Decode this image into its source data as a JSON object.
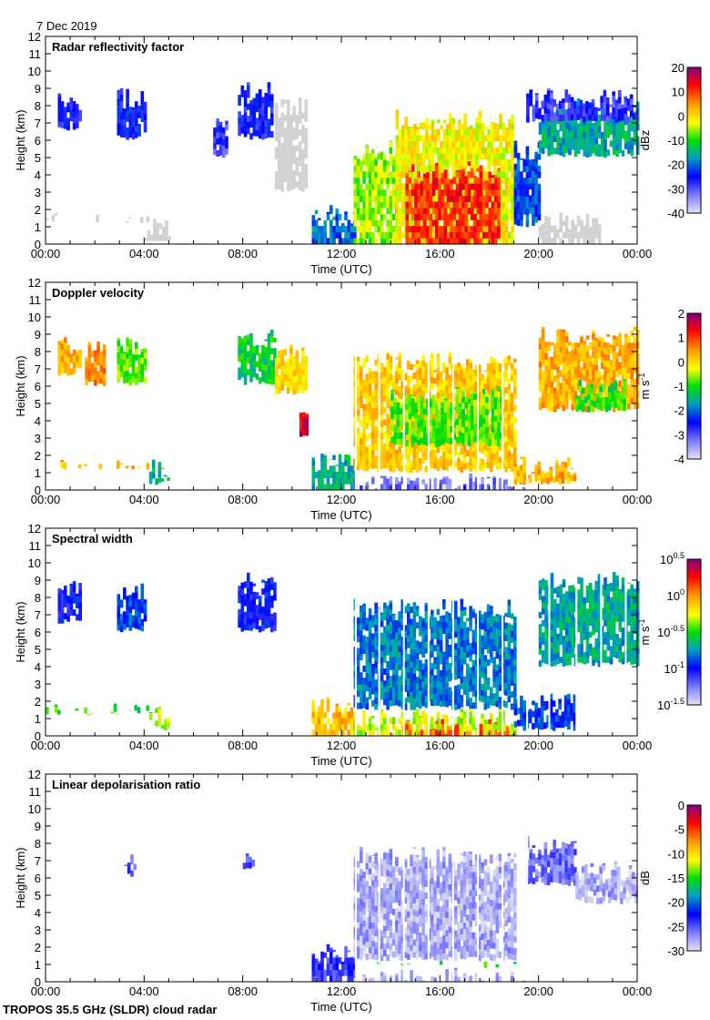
{
  "header": {
    "date": "7 Dec 2019"
  },
  "footer": {
    "credit": "TROPOS 35.5 GHz (SLDR) cloud radar"
  },
  "chart_data": [
    {
      "type": "heatmap",
      "title": "Radar reflectivity factor",
      "xlabel": "Time (UTC)",
      "ylabel": "Height (km)",
      "xlim": [
        0,
        24
      ],
      "ylim": [
        0,
        12
      ],
      "xticks": [
        "00:00",
        "04:00",
        "08:00",
        "12:00",
        "16:00",
        "20:00",
        "00:00"
      ],
      "yticks": [
        0,
        1,
        2,
        3,
        4,
        5,
        6,
        7,
        8,
        9,
        10,
        11,
        12
      ],
      "colorbar": {
        "unit": "dBz",
        "unit_sup": "",
        "range": [
          -40,
          20
        ],
        "ticks": [
          "20",
          "10",
          "0",
          "-10",
          "-20",
          "-30",
          "-40"
        ],
        "log": false
      },
      "gaps": [],
      "regions": [
        {
          "t": [
            0.5,
            1.4
          ],
          "h": [
            6.5,
            8.7
          ],
          "v": -26
        },
        {
          "t": [
            2.9,
            4.0
          ],
          "h": [
            6.0,
            9.0
          ],
          "v": -25
        },
        {
          "t": [
            0.0,
            4.8
          ],
          "h": [
            1.2,
            1.8
          ],
          "v": -45
        },
        {
          "t": [
            4.0,
            5.0
          ],
          "h": [
            0.2,
            1.5
          ],
          "v": -45
        },
        {
          "t": [
            7.8,
            9.2
          ],
          "h": [
            6.0,
            9.5
          ],
          "v": -26
        },
        {
          "t": [
            6.8,
            7.4
          ],
          "h": [
            5.0,
            7.5
          ],
          "v": -28
        },
        {
          "t": [
            9.3,
            10.5
          ],
          "h": [
            3.0,
            8.5
          ],
          "v": -45
        },
        {
          "t": [
            10.8,
            12.5
          ],
          "h": [
            0.0,
            2.3
          ],
          "v": -20
        },
        {
          "t": [
            12.5,
            14.2
          ],
          "h": [
            0.0,
            6.0
          ],
          "v": -6
        },
        {
          "t": [
            14.2,
            19.0
          ],
          "h": [
            0.0,
            7.8
          ],
          "v": -2
        },
        {
          "t": [
            14.6,
            18.4
          ],
          "h": [
            0.0,
            4.8
          ],
          "v": 11
        },
        {
          "t": [
            19.0,
            20.0
          ],
          "h": [
            1.0,
            6.0
          ],
          "v": -22
        },
        {
          "t": [
            20.0,
            22.5
          ],
          "h": [
            0.0,
            2.0
          ],
          "v": -45
        },
        {
          "t": [
            20.0,
            24.0
          ],
          "h": [
            5.0,
            8.5
          ],
          "v": -16
        },
        {
          "t": [
            19.5,
            24.0
          ],
          "h": [
            7.0,
            9.0
          ],
          "v": -28
        }
      ]
    },
    {
      "type": "heatmap",
      "title": "Doppler velocity",
      "xlabel": "Time (UTC)",
      "ylabel": "Height (km)",
      "xlim": [
        0,
        24
      ],
      "ylim": [
        0,
        12
      ],
      "xticks": [
        "00:00",
        "04:00",
        "08:00",
        "12:00",
        "16:00",
        "20:00",
        "00:00"
      ],
      "yticks": [
        0,
        1,
        2,
        3,
        4,
        5,
        6,
        7,
        8,
        9,
        10,
        11,
        12
      ],
      "colorbar": {
        "unit": "m s",
        "unit_sup": "-1",
        "range": [
          -4,
          2
        ],
        "ticks": [
          "2",
          "1",
          "0",
          "-1",
          "-2",
          "-3",
          "-4"
        ],
        "log": false
      },
      "gaps": [
        12.55,
        13.5,
        14.5,
        15.5,
        16.5,
        17.5,
        18.5,
        19.5
      ],
      "regions": [
        {
          "t": [
            0.5,
            1.4
          ],
          "h": [
            6.5,
            9.0
          ],
          "v": 0.3
        },
        {
          "t": [
            1.6,
            2.4
          ],
          "h": [
            6.0,
            8.8
          ],
          "v": 0.5
        },
        {
          "t": [
            2.9,
            4.0
          ],
          "h": [
            6.0,
            9.0
          ],
          "v": -0.8
        },
        {
          "t": [
            0.0,
            4.8
          ],
          "h": [
            1.2,
            1.8
          ],
          "v": 0.2
        },
        {
          "t": [
            4.2,
            5.0
          ],
          "h": [
            0.3,
            1.8
          ],
          "v": -1.5
        },
        {
          "t": [
            7.8,
            9.3
          ],
          "h": [
            6.0,
            9.5
          ],
          "v": -1.2
        },
        {
          "t": [
            9.3,
            10.5
          ],
          "h": [
            5.5,
            8.5
          ],
          "v": 0.0
        },
        {
          "t": [
            10.3,
            10.6
          ],
          "h": [
            3.0,
            5.0
          ],
          "v": 1.5
        },
        {
          "t": [
            10.8,
            12.5
          ],
          "h": [
            0.0,
            2.3
          ],
          "v": -1.5
        },
        {
          "t": [
            12.5,
            19.0
          ],
          "h": [
            1.0,
            8.0
          ],
          "v": 0.1
        },
        {
          "t": [
            14.0,
            18.5
          ],
          "h": [
            2.5,
            6.0
          ],
          "v": -0.8
        },
        {
          "t": [
            12.5,
            19.5
          ],
          "h": [
            0.0,
            1.0
          ],
          "v": -3.2
        },
        {
          "t": [
            19.0,
            21.5
          ],
          "h": [
            0.3,
            2.0
          ],
          "v": 0.3
        },
        {
          "t": [
            20.0,
            24.0
          ],
          "h": [
            4.5,
            9.5
          ],
          "v": 0.3
        },
        {
          "t": [
            21.5,
            23.5
          ],
          "h": [
            4.5,
            6.5
          ],
          "v": -1.0
        }
      ]
    },
    {
      "type": "heatmap",
      "title": "Spectral width",
      "xlabel": "Time (UTC)",
      "ylabel": "Height (km)",
      "xlim": [
        0,
        24
      ],
      "ylim": [
        0,
        12
      ],
      "xticks": [
        "00:00",
        "04:00",
        "08:00",
        "12:00",
        "16:00",
        "20:00",
        "00:00"
      ],
      "yticks": [
        0,
        1,
        2,
        3,
        4,
        5,
        6,
        7,
        8,
        9,
        10,
        11,
        12
      ],
      "colorbar": {
        "unit": "m s",
        "unit_sup": "-1",
        "range": [
          -1.5,
          0.5
        ],
        "log": true,
        "ticks": [
          {
            "base": "10",
            "exp": "0.5"
          },
          {
            "base": "10",
            "exp": "0"
          },
          {
            "base": "10",
            "exp": "-0.5"
          },
          {
            "base": "10",
            "exp": "-1"
          },
          {
            "base": "10",
            "exp": "-1.5"
          }
        ]
      },
      "gaps": [
        12.55,
        13.5,
        14.5,
        15.5,
        16.5,
        17.5,
        18.5,
        19.5,
        20.4,
        21.5,
        22.5,
        23.5
      ],
      "regions": [
        {
          "t": [
            0.5,
            1.4
          ],
          "h": [
            6.5,
            9.0
          ],
          "v": -1.0
        },
        {
          "t": [
            2.9,
            4.0
          ],
          "h": [
            6.0,
            9.0
          ],
          "v": -0.9
        },
        {
          "t": [
            0.0,
            4.8
          ],
          "h": [
            1.2,
            1.9
          ],
          "v": -0.5
        },
        {
          "t": [
            4.2,
            5.0
          ],
          "h": [
            0.3,
            1.8
          ],
          "v": -0.3
        },
        {
          "t": [
            7.8,
            9.3
          ],
          "h": [
            6.0,
            9.5
          ],
          "v": -1.0
        },
        {
          "t": [
            10.8,
            12.5
          ],
          "h": [
            0.0,
            2.3
          ],
          "v": -0.1
        },
        {
          "t": [
            12.5,
            19.0
          ],
          "h": [
            1.5,
            8.0
          ],
          "v": -0.8
        },
        {
          "t": [
            12.5,
            19.0
          ],
          "h": [
            0.0,
            1.6
          ],
          "v": -0.3
        },
        {
          "t": [
            14.0,
            19.0
          ],
          "h": [
            0.0,
            1.0
          ],
          "v": 0.1
        },
        {
          "t": [
            19.0,
            21.5
          ],
          "h": [
            0.3,
            2.5
          ],
          "v": -0.9
        },
        {
          "t": [
            20.0,
            24.0
          ],
          "h": [
            4.0,
            9.5
          ],
          "v": -0.7
        }
      ]
    },
    {
      "type": "heatmap",
      "title": "Linear depolarisation ratio",
      "xlabel": "Time (UTC)",
      "ylabel": "Height (km)",
      "xlim": [
        0,
        24
      ],
      "ylim": [
        0,
        12
      ],
      "xticks": [
        "00:00",
        "04:00",
        "08:00",
        "12:00",
        "16:00",
        "20:00",
        "00:00"
      ],
      "yticks": [
        0,
        1,
        2,
        3,
        4,
        5,
        6,
        7,
        8,
        9,
        10,
        11,
        12
      ],
      "colorbar": {
        "unit": "dB",
        "unit_sup": "",
        "range": [
          -30,
          0
        ],
        "ticks": [
          "0",
          "-5",
          "-10",
          "-15",
          "-20",
          "-25",
          "-30"
        ],
        "log": false
      },
      "gaps": [
        12.55,
        13.5,
        14.5,
        15.5,
        16.5,
        17.5,
        18.5,
        19.5
      ],
      "regions": [
        {
          "t": [
            3.2,
            3.6
          ],
          "h": [
            6.0,
            7.5
          ],
          "v": -25
        },
        {
          "t": [
            8.0,
            8.4
          ],
          "h": [
            6.5,
            8.0
          ],
          "v": -25
        },
        {
          "t": [
            10.8,
            12.5
          ],
          "h": [
            0.0,
            2.3
          ],
          "v": -24
        },
        {
          "t": [
            12.5,
            19.0
          ],
          "h": [
            1.2,
            7.8
          ],
          "v": -28
        },
        {
          "t": [
            12.5,
            19.5
          ],
          "h": [
            0.8,
            1.2
          ],
          "v": -15
        },
        {
          "t": [
            12.5,
            19.5
          ],
          "h": [
            0.0,
            0.8
          ],
          "v": -28
        },
        {
          "t": [
            19.5,
            21.5
          ],
          "h": [
            5.5,
            8.5
          ],
          "v": -26
        },
        {
          "t": [
            21.5,
            24.0
          ],
          "h": [
            4.5,
            7.0
          ],
          "v": -28
        }
      ]
    }
  ]
}
